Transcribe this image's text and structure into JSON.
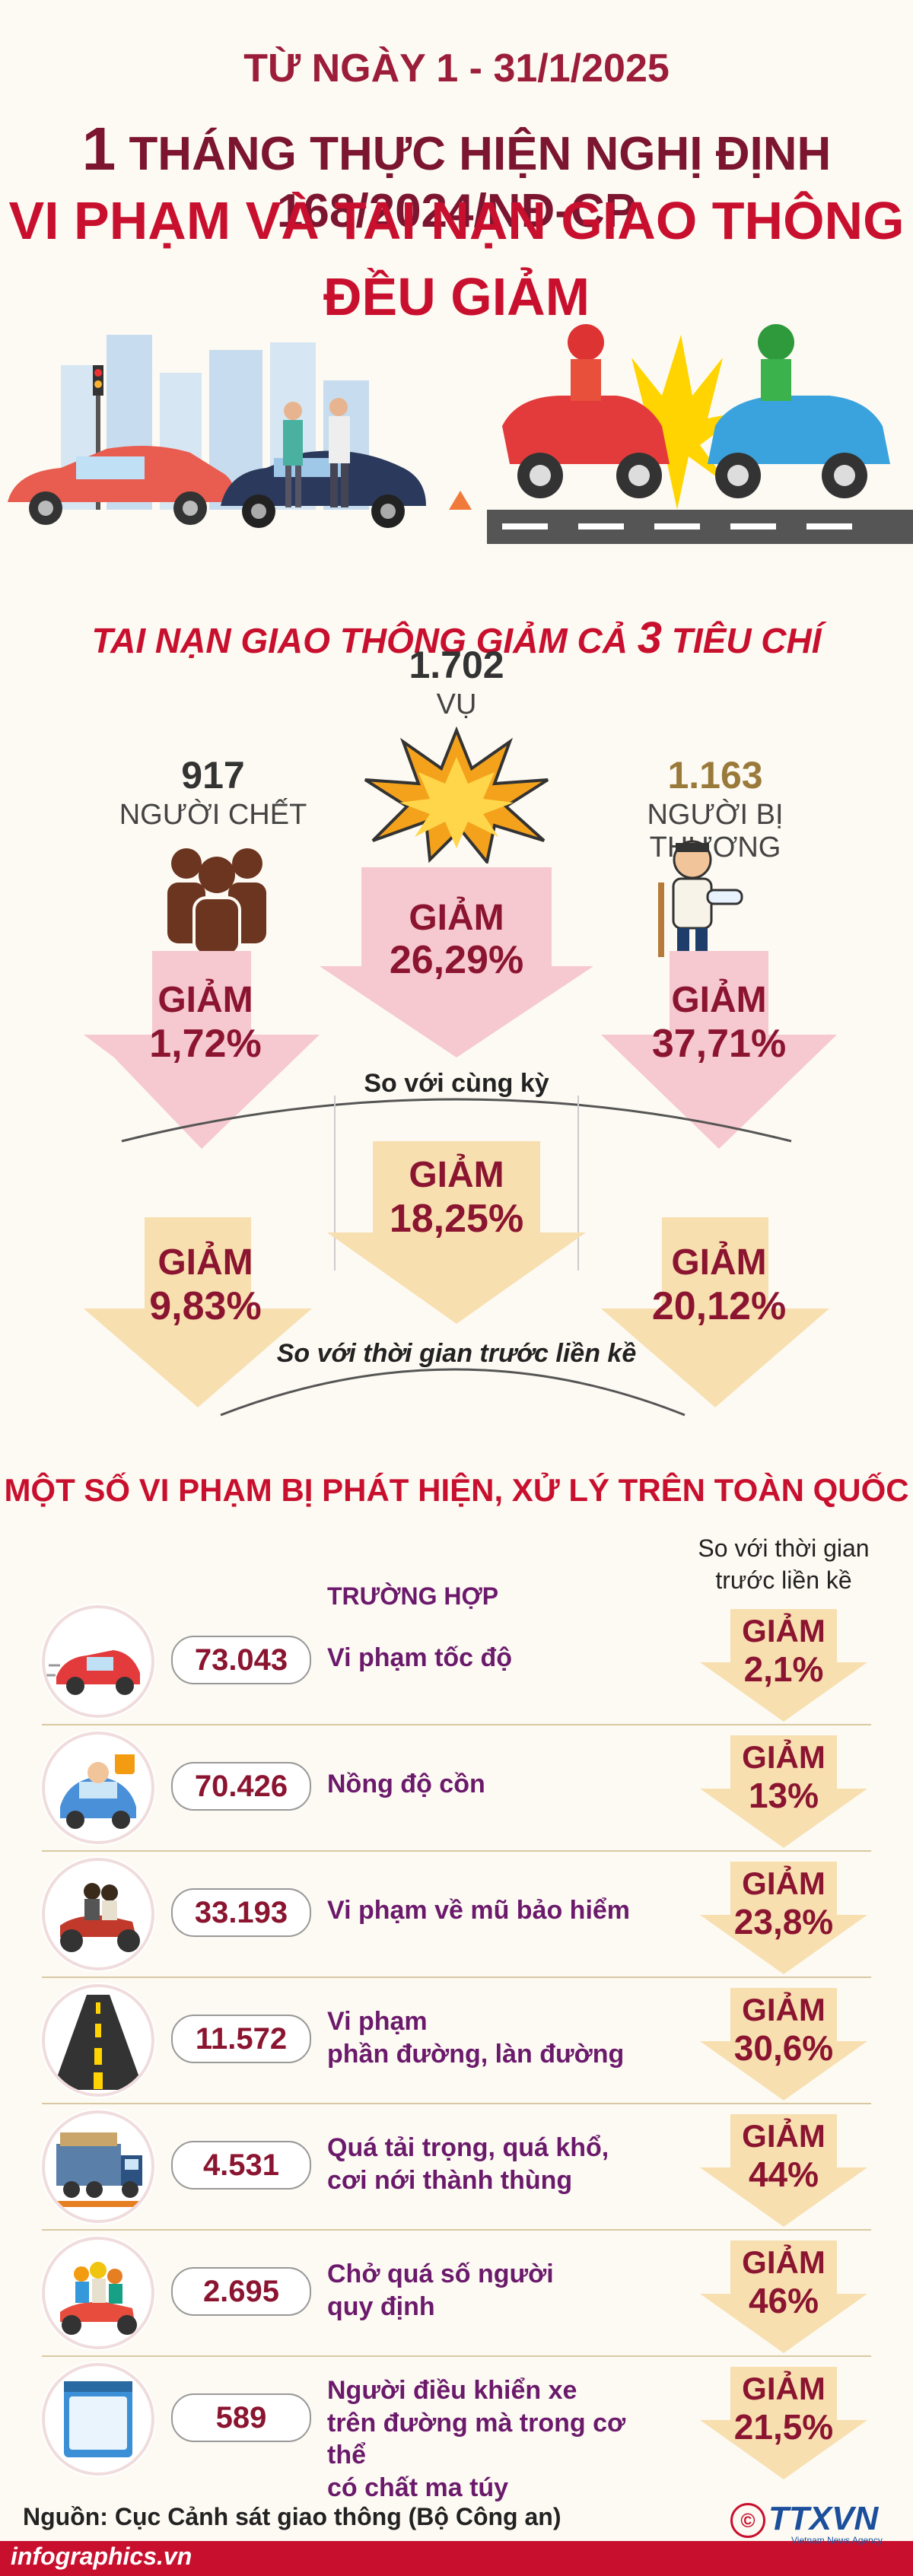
{
  "header": {
    "date_range": "TỪ NGÀY 1 - 31/1/2025",
    "line2_num": "1",
    "line2_text": "THÁNG THỰC HIỆN NGHỊ ĐỊNH 168/2024/NĐ-CP",
    "line3": "VI PHẠM VÀ TAI NẠN GIAO THÔNG",
    "line4": "ĐỀU GIẢM"
  },
  "accidents": {
    "title_a": "TAI NẠN GIAO THÔNG GIẢM CẢ",
    "title_num": "3",
    "title_b": "TIÊU CHÍ",
    "cases_value": "1.702",
    "cases_label": "VỤ",
    "deaths_value": "917",
    "deaths_label": "NGƯỜI CHẾT",
    "injured_value": "1.163",
    "injured_label": "NGƯỜI BỊ THƯƠNG",
    "giam": "GIẢM",
    "yoy_cases": "26,29%",
    "yoy_deaths": "1,72%",
    "yoy_injured": "37,71%",
    "yoy_label": "So với cùng kỳ",
    "prev_cases": "18,25%",
    "prev_deaths": "9,83%",
    "prev_injured": "20,12%",
    "prev_label": "So với thời gian trước liền kề"
  },
  "violations": {
    "title": "MỘT SỐ VI PHẠM BỊ PHÁT HIỆN, XỬ LÝ TRÊN TOÀN QUỐC",
    "col_cases": "TRƯỜNG HỢP",
    "col_compare_1": "So với thời gian",
    "col_compare_2": "trước liền kề",
    "giam": "GIẢM",
    "rows": [
      {
        "count": "73.043",
        "label1": "Vi phạm tốc độ",
        "label2": "",
        "label3": "",
        "change": "2,1%",
        "icon": "speeding-car-icon"
      },
      {
        "count": "70.426",
        "label1": "Nồng độ cồn",
        "label2": "",
        "label3": "",
        "change": "13%",
        "icon": "drunk-driver-icon"
      },
      {
        "count": "33.193",
        "label1": "Vi phạm về mũ bảo hiểm",
        "label2": "",
        "label3": "",
        "change": "23,8%",
        "icon": "helmetless-motorbike-icon"
      },
      {
        "count": "11.572",
        "label1": "Vi phạm",
        "label2": "phần đường, làn đường",
        "label3": "",
        "change": "30,6%",
        "icon": "road-lane-icon"
      },
      {
        "count": "4.531",
        "label1": "Quá tải trọng, quá khổ,",
        "label2": "cơi nới thành thùng",
        "label3": "",
        "change": "44%",
        "icon": "overloaded-truck-icon"
      },
      {
        "count": "2.695",
        "label1": "Chở quá số người",
        "label2": "quy định",
        "label3": "",
        "change": "46%",
        "icon": "overloaded-scooter-icon"
      },
      {
        "count": "589",
        "label1": "Người điều khiển xe",
        "label2": "trên đường mà trong cơ thể",
        "label3": "có chất ma túy",
        "change": "21,5%",
        "icon": "drug-packet-icon"
      }
    ]
  },
  "source": "Nguồn: Cục Cảnh sát giao thông (Bộ Công an)",
  "footer": {
    "site": "infographics.vn",
    "brand": "TTXVN",
    "brand_sub": "Vietnam News Agency"
  },
  "colors": {
    "accent_red": "#c8102e",
    "dark_red": "#8b1530",
    "purple": "#6b1a6b",
    "arrow_pink": "#f6c8d0",
    "arrow_yellow": "#f7dfb0"
  }
}
